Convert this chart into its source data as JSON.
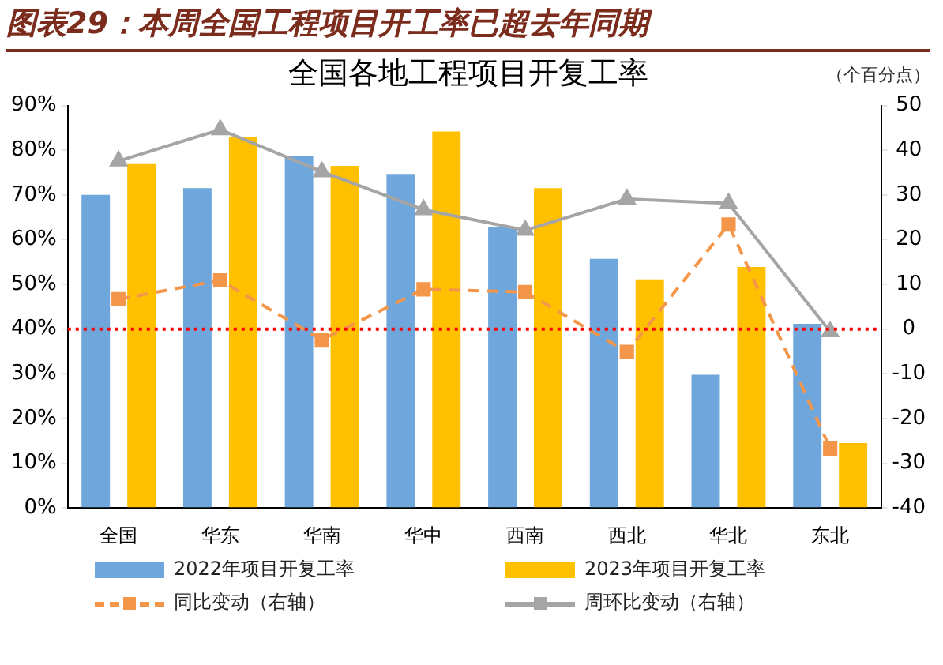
{
  "chart_data": {
    "type": "bar",
    "title": "图表29：本周全国工程项目开工率已超去年同期",
    "subtitle": "全国各地工程项目开复工率",
    "y2label": "（个百分点）",
    "categories": [
      "全国",
      "华东",
      "华南",
      "华中",
      "西南",
      "西北",
      "华北",
      "东北"
    ],
    "series": [
      {
        "name": "2022年项目开复工率",
        "color": "#6fa6dc",
        "values": [
          70,
          71.5,
          78.7,
          74.7,
          62.9,
          55.7,
          29.8,
          41.2
        ]
      },
      {
        "name": "2023年项目开复工率",
        "color": "#ffc000",
        "values": [
          76.9,
          83,
          76.5,
          84.2,
          71.5,
          51.1,
          53.9,
          14.5
        ]
      },
      {
        "name": "同比变动（右轴）",
        "type": "line",
        "axis": "y2",
        "color": "#f4964a",
        "marker": "square",
        "line_style": "dashed",
        "values": [
          6.7,
          10.9,
          -2.4,
          8.9,
          8.3,
          -5.1,
          23.4,
          -26.7
        ]
      },
      {
        "name": "周环比变动（右轴）",
        "type": "line",
        "axis": "y2",
        "color": "#a5a5a5",
        "marker": "triangle",
        "line_style": "solid",
        "values": [
          37.6,
          44.6,
          35.2,
          26.7,
          22.1,
          29.1,
          28.1,
          -0.6
        ]
      }
    ],
    "ylim": [
      0,
      90
    ],
    "yticks": [
      {
        "value": 0,
        "label": "0%"
      },
      {
        "value": 10,
        "label": "10%"
      },
      {
        "value": 20,
        "label": "20%"
      },
      {
        "value": 30,
        "label": "30%"
      },
      {
        "value": 40,
        "label": "40%"
      },
      {
        "value": 50,
        "label": "50%"
      },
      {
        "value": 60,
        "label": "60%"
      },
      {
        "value": 70,
        "label": "70%"
      },
      {
        "value": 80,
        "label": "80%"
      },
      {
        "value": 90,
        "label": "90%"
      }
    ],
    "y2lim": [
      -40,
      50
    ],
    "y2ticks": [
      -40,
      -30,
      -20,
      -10,
      0,
      10,
      20,
      30,
      40,
      50
    ],
    "ref_lines": [
      {
        "axis": "y2",
        "value": 0,
        "color": "#ff0000",
        "line_style": "dotted"
      }
    ],
    "grid": false,
    "legend": "bottom"
  }
}
